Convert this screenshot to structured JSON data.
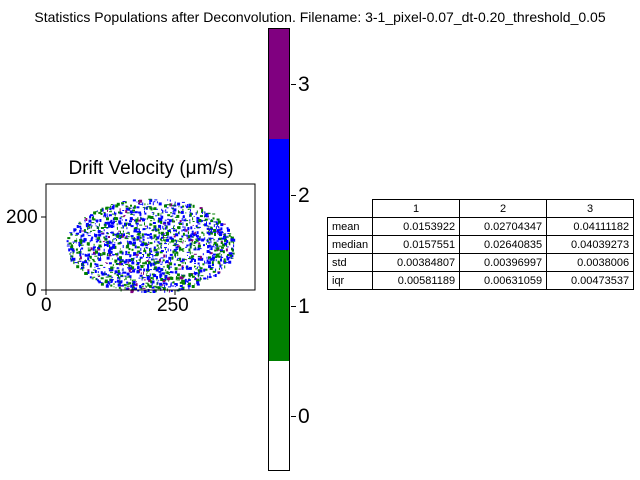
{
  "figure_title": "Statistics Populations after Deconvolution. Filename: 3-1_pixel-0.07_dt-0.20_threshold_0.05",
  "chart_data": [
    {
      "type": "heatmap",
      "title": "Drift Velocity (μm/s)",
      "xticks": [
        "0",
        "250"
      ],
      "yticks": [
        "0",
        "200"
      ],
      "xlim": [
        0,
        400
      ],
      "ylim": [
        0,
        260
      ],
      "categories": [
        "0",
        "1",
        "2",
        "3"
      ],
      "colors": [
        "#ffffff",
        "#008000",
        "#0000ff",
        "#800080"
      ],
      "colorbar_ticks": [
        "0",
        "1",
        "2",
        "3"
      ]
    },
    {
      "type": "table",
      "columns": [
        "1",
        "2",
        "3"
      ],
      "rows": [
        {
          "label": "mean",
          "values": [
            "0.0153922",
            "0.02704347",
            "0.04111182"
          ]
        },
        {
          "label": "median",
          "values": [
            "0.0157551",
            "0.02640835",
            "0.04039273"
          ]
        },
        {
          "label": "std",
          "values": [
            "0.00384807",
            "0.00396997",
            "0.0038006"
          ]
        },
        {
          "label": "iqr",
          "values": [
            "0.00581189",
            "0.00631059",
            "0.00473537"
          ]
        }
      ]
    }
  ]
}
